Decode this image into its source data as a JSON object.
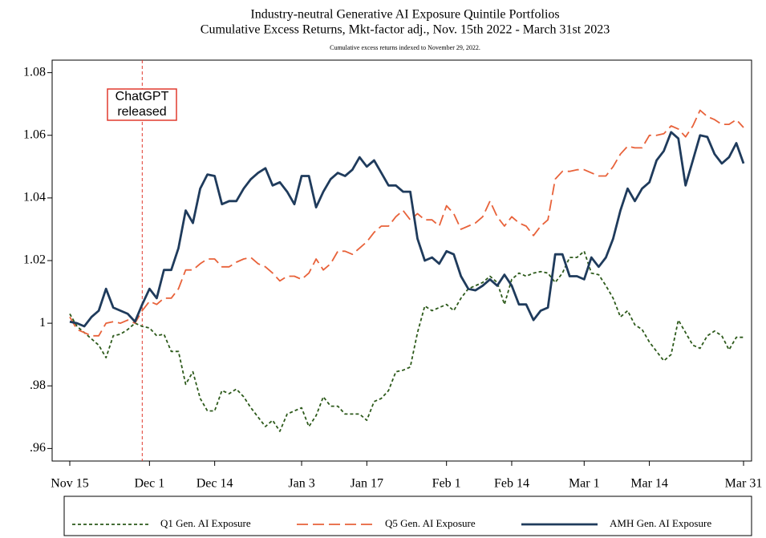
{
  "chart_data": {
    "type": "line",
    "title": "Industry-neutral Generative AI Exposure Quintile Portfolios",
    "subtitle": "Cumulative Excess Returns, Mkt-factor adj., Nov. 15th 2022 - March 31st 2023",
    "note": "Cumulative excess returns indexed to November 29, 2022.",
    "annotation": {
      "lines": [
        "ChatGPT",
        "released"
      ],
      "x": 10,
      "color": "#e03a2e"
    },
    "categories": [
      "Nov 15",
      null,
      null,
      null,
      null,
      null,
      null,
      null,
      null,
      null,
      null,
      "Dec 1",
      null,
      null,
      null,
      null,
      null,
      null,
      null,
      null,
      "Dec 14",
      null,
      null,
      null,
      null,
      null,
      null,
      null,
      null,
      null,
      null,
      null,
      "Jan 3",
      null,
      null,
      null,
      null,
      null,
      null,
      null,
      null,
      "Jan 17",
      null,
      null,
      null,
      null,
      null,
      null,
      null,
      null,
      null,
      null,
      "Feb 1",
      null,
      null,
      null,
      null,
      null,
      null,
      null,
      null,
      "Feb 14",
      null,
      null,
      null,
      null,
      null,
      null,
      null,
      null,
      null,
      "Mar 1",
      null,
      null,
      null,
      null,
      null,
      null,
      null,
      null,
      "Mar 14",
      null,
      null,
      null,
      null,
      null,
      null,
      null,
      null,
      null,
      null,
      null,
      null,
      "Mar 31"
    ],
    "series": [
      {
        "name": "Q1 Gen. AI Exposure",
        "color": "#2d5a1b",
        "dash": "short",
        "values": [
          1.003,
          0.999,
          0.997,
          0.995,
          0.993,
          0.989,
          0.996,
          0.9965,
          0.998,
          1.0,
          0.999,
          0.9985,
          0.996,
          0.9965,
          0.991,
          0.991,
          0.9805,
          0.9845,
          0.976,
          0.972,
          0.972,
          0.9785,
          0.9775,
          0.979,
          0.9765,
          0.973,
          0.97,
          0.967,
          0.969,
          0.9655,
          0.971,
          0.972,
          0.973,
          0.967,
          0.9705,
          0.9765,
          0.9735,
          0.9735,
          0.971,
          0.971,
          0.971,
          0.969,
          0.975,
          0.976,
          0.9785,
          0.9845,
          0.985,
          0.986,
          0.997,
          1.0055,
          1.004,
          1.005,
          1.006,
          1.004,
          1.008,
          1.011,
          1.012,
          1.013,
          1.015,
          1.013,
          1.006,
          1.014,
          1.016,
          1.015,
          1.016,
          1.0165,
          1.016,
          1.013,
          1.016,
          1.021,
          1.021,
          1.023,
          1.016,
          1.0155,
          1.012,
          1.008,
          1.002,
          1.004,
          0.9995,
          0.998,
          0.994,
          0.991,
          0.988,
          0.99,
          1.001,
          0.997,
          0.993,
          0.992,
          0.996,
          0.9975,
          0.996,
          0.9915,
          0.9955,
          0.9955
        ]
      },
      {
        "name": "Q5 Gen. AI Exposure",
        "color": "#e8623a",
        "dash": "long",
        "values": [
          1.002,
          0.998,
          0.997,
          0.996,
          0.996,
          1.0,
          1.0005,
          1.0,
          1.001,
          1.0,
          1.004,
          1.007,
          1.006,
          1.008,
          1.008,
          1.011,
          1.017,
          1.017,
          1.019,
          1.0205,
          1.0205,
          1.018,
          1.018,
          1.0195,
          1.0205,
          1.021,
          1.019,
          1.018,
          1.016,
          1.0135,
          1.015,
          1.015,
          1.014,
          1.016,
          1.0205,
          1.017,
          1.019,
          1.023,
          1.023,
          1.022,
          1.024,
          1.026,
          1.029,
          1.031,
          1.031,
          1.034,
          1.036,
          1.033,
          1.035,
          1.033,
          1.033,
          1.031,
          1.0375,
          1.035,
          1.03,
          1.031,
          1.032,
          1.034,
          1.039,
          1.034,
          1.031,
          1.034,
          1.032,
          1.031,
          1.028,
          1.031,
          1.033,
          1.046,
          1.0485,
          1.0485,
          1.049,
          1.049,
          1.048,
          1.047,
          1.047,
          1.05,
          1.054,
          1.0565,
          1.056,
          1.056,
          1.06,
          1.06,
          1.0605,
          1.063,
          1.062,
          1.0595,
          1.063,
          1.068,
          1.066,
          1.065,
          1.0635,
          1.0635,
          1.065,
          1.0625
        ]
      },
      {
        "name": "AMH Gen. AI Exposure",
        "color": "#1f3b5c",
        "dash": "solid",
        "values": [
          1.0005,
          1.0,
          0.999,
          1.002,
          1.004,
          1.011,
          1.005,
          1.004,
          1.003,
          1.0005,
          1.006,
          1.011,
          1.008,
          1.017,
          1.017,
          1.024,
          1.036,
          1.032,
          1.043,
          1.0475,
          1.047,
          1.038,
          1.039,
          1.039,
          1.043,
          1.046,
          1.048,
          1.0495,
          1.044,
          1.045,
          1.042,
          1.038,
          1.047,
          1.047,
          1.037,
          1.042,
          1.046,
          1.048,
          1.047,
          1.049,
          1.053,
          1.05,
          1.052,
          1.048,
          1.044,
          1.044,
          1.042,
          1.042,
          1.027,
          1.02,
          1.021,
          1.019,
          1.023,
          1.022,
          1.015,
          1.011,
          1.0105,
          1.012,
          1.014,
          1.012,
          1.0155,
          1.012,
          1.006,
          1.006,
          1.001,
          1.004,
          1.005,
          1.022,
          1.022,
          1.015,
          1.015,
          1.014,
          1.021,
          1.018,
          1.021,
          1.027,
          1.036,
          1.043,
          1.039,
          1.043,
          1.045,
          1.052,
          1.055,
          1.061,
          1.059,
          1.044,
          1.052,
          1.06,
          1.0595,
          1.054,
          1.051,
          1.053,
          1.0575,
          1.051
        ]
      }
    ],
    "ylim": [
      0.956,
      1.084
    ],
    "yticks": [
      {
        "value": 0.96,
        "label": ".96"
      },
      {
        "value": 0.98,
        "label": ".98"
      },
      1,
      1.02,
      1.04,
      1.06,
      1.08
    ],
    "legend": "bottom"
  }
}
